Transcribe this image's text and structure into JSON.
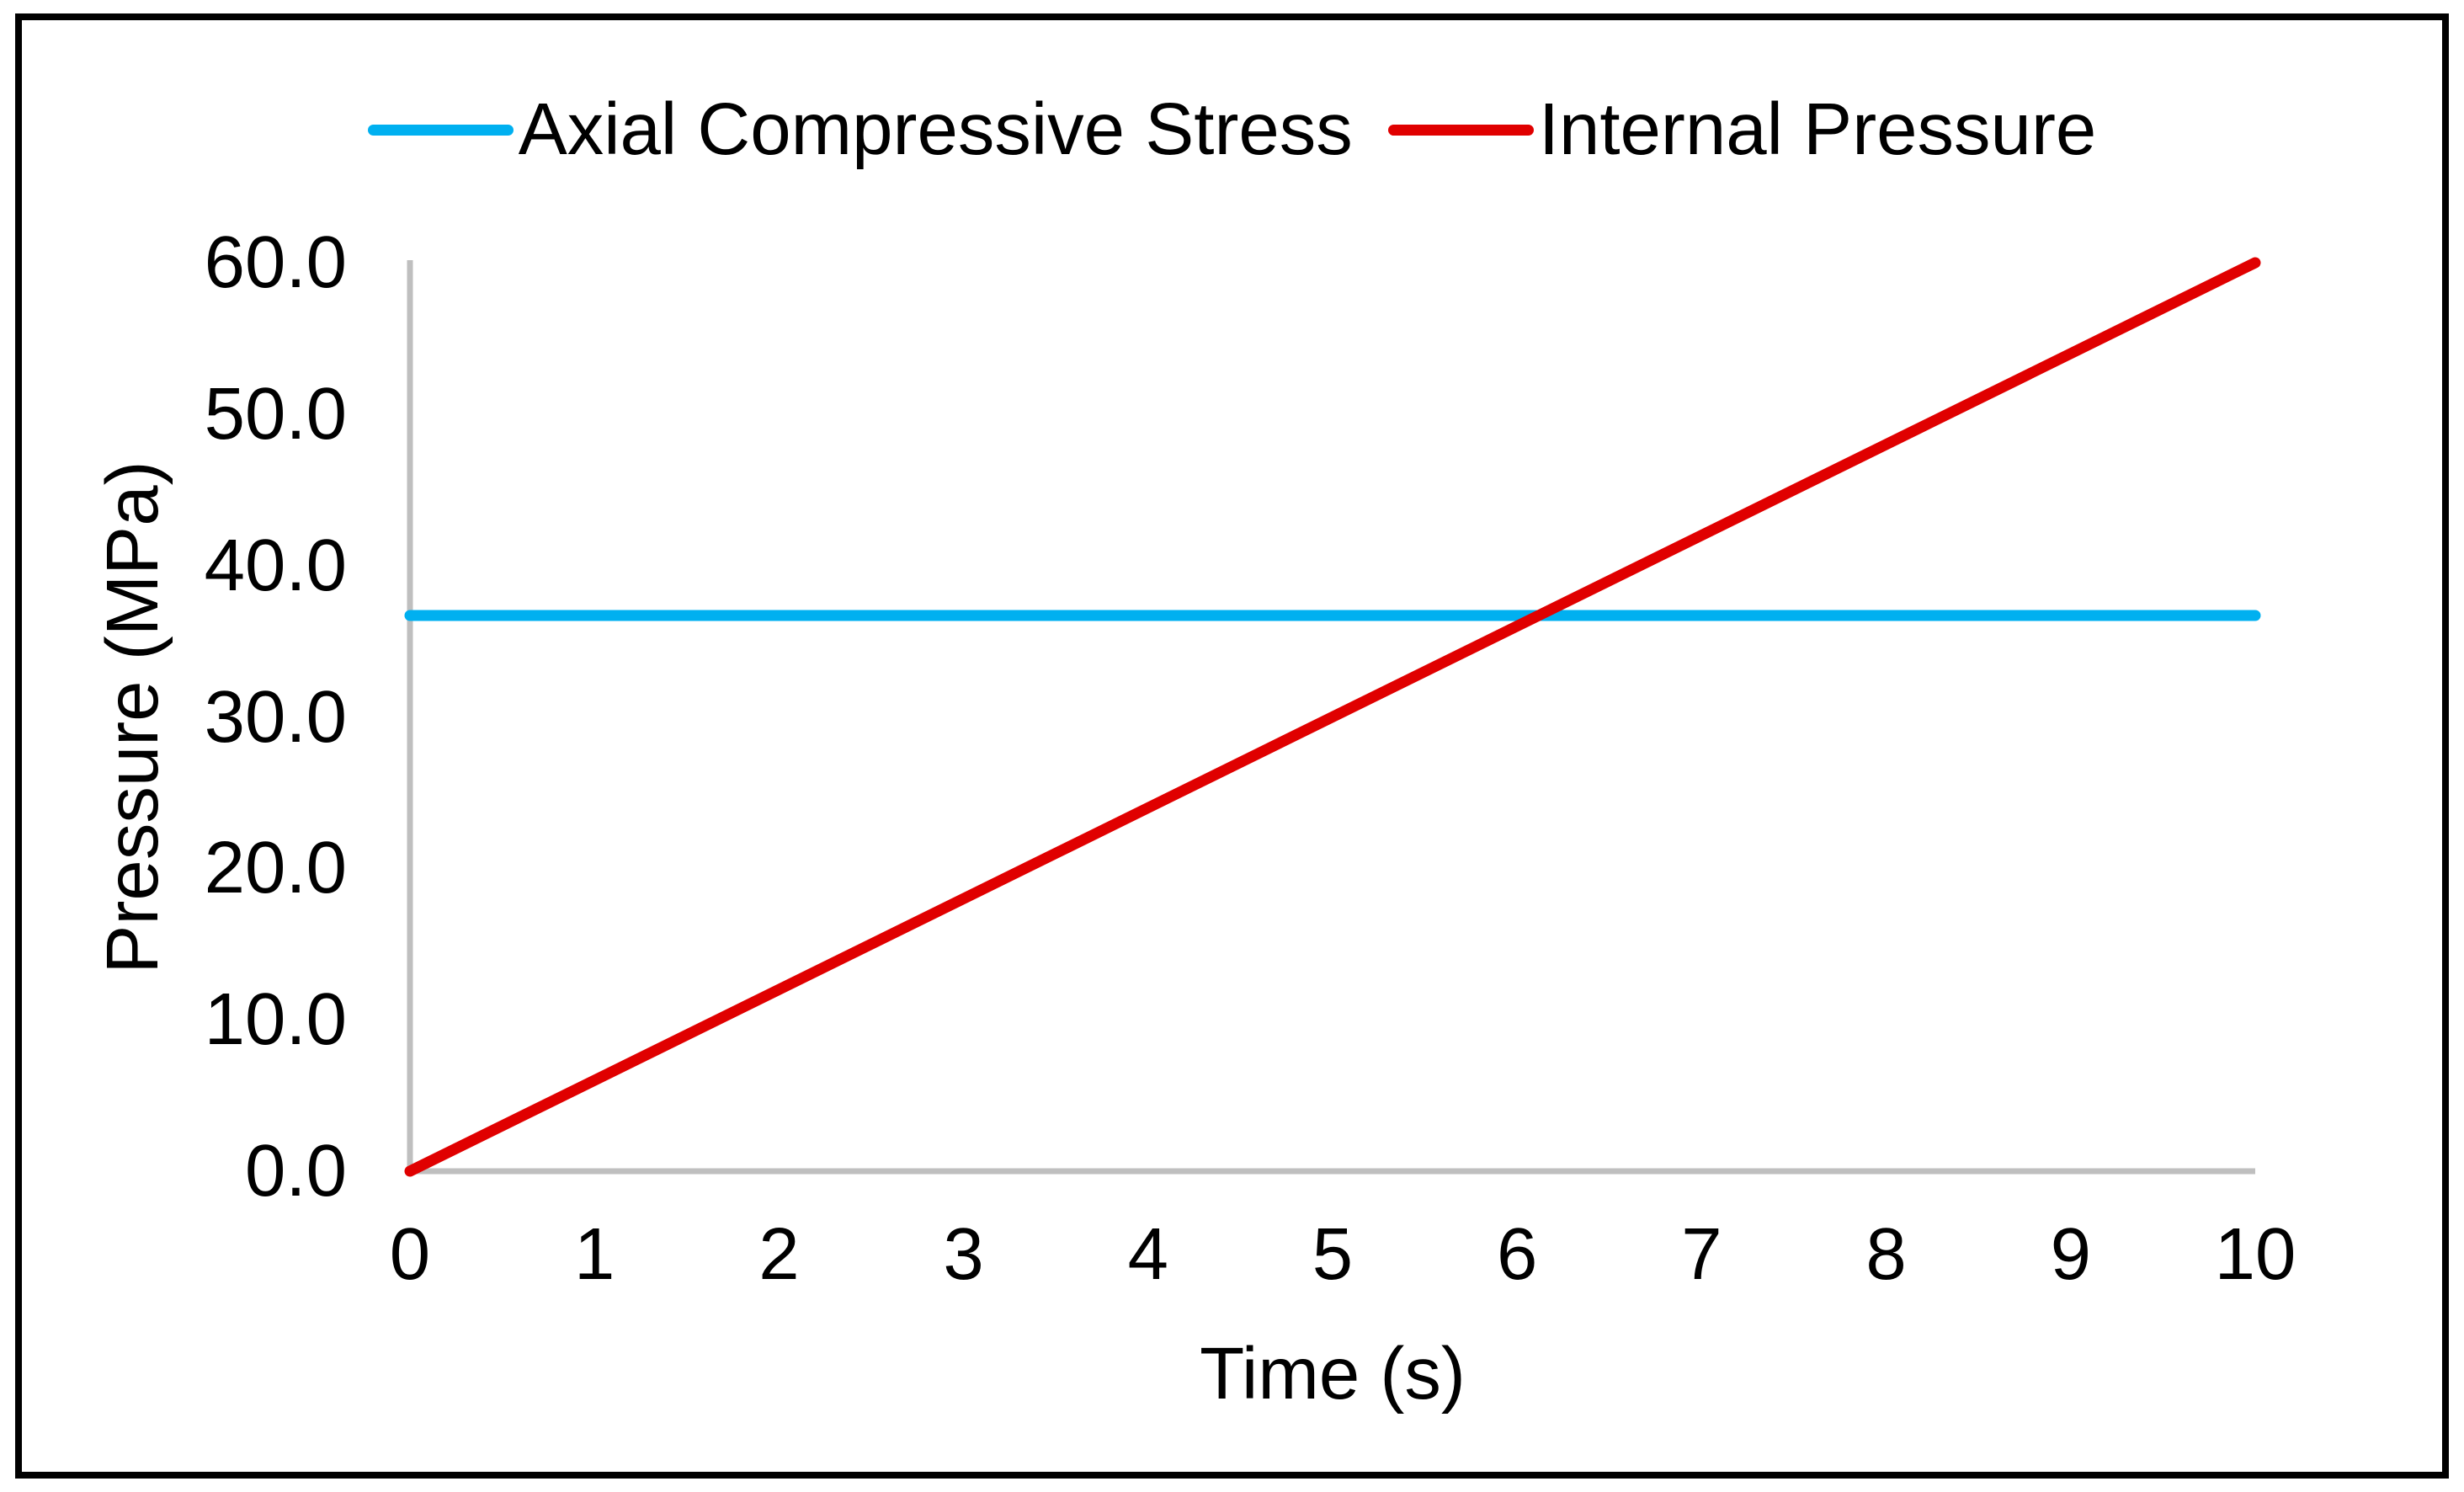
{
  "colors": {
    "background": "#FFFFFF",
    "border": "#000000",
    "axis_line": "#BFBFBF",
    "text": "#000000",
    "axial_series": "#00B0F0",
    "internal_series": "#E00000"
  },
  "chart_data": {
    "type": "line",
    "title": "",
    "xlabel": "Time (s)",
    "ylabel": "Pressure (MPa)",
    "xlim": [
      0,
      10
    ],
    "ylim": [
      0,
      60
    ],
    "grid": false,
    "legend_position": "top",
    "x_ticks": {
      "values": [
        0,
        1,
        2,
        3,
        4,
        5,
        6,
        7,
        8,
        9,
        10
      ],
      "labels": [
        "0",
        "1",
        "2",
        "3",
        "4",
        "5",
        "6",
        "7",
        "8",
        "9",
        "10"
      ]
    },
    "y_ticks": {
      "values": [
        0,
        10,
        20,
        30,
        40,
        50,
        60
      ],
      "labels": [
        "0.0",
        "10.0",
        "20.0",
        "30.0",
        "40.0",
        "50.0",
        "60.0"
      ]
    },
    "series": [
      {
        "name": "Axial Compressive Stress",
        "color": "#00B0F0",
        "points": [
          [
            0,
            36.7
          ],
          [
            10,
            36.7
          ]
        ]
      },
      {
        "name": "Internal Pressure",
        "color": "#E00000",
        "points": [
          [
            0,
            0
          ],
          [
            10,
            60
          ]
        ]
      }
    ]
  }
}
